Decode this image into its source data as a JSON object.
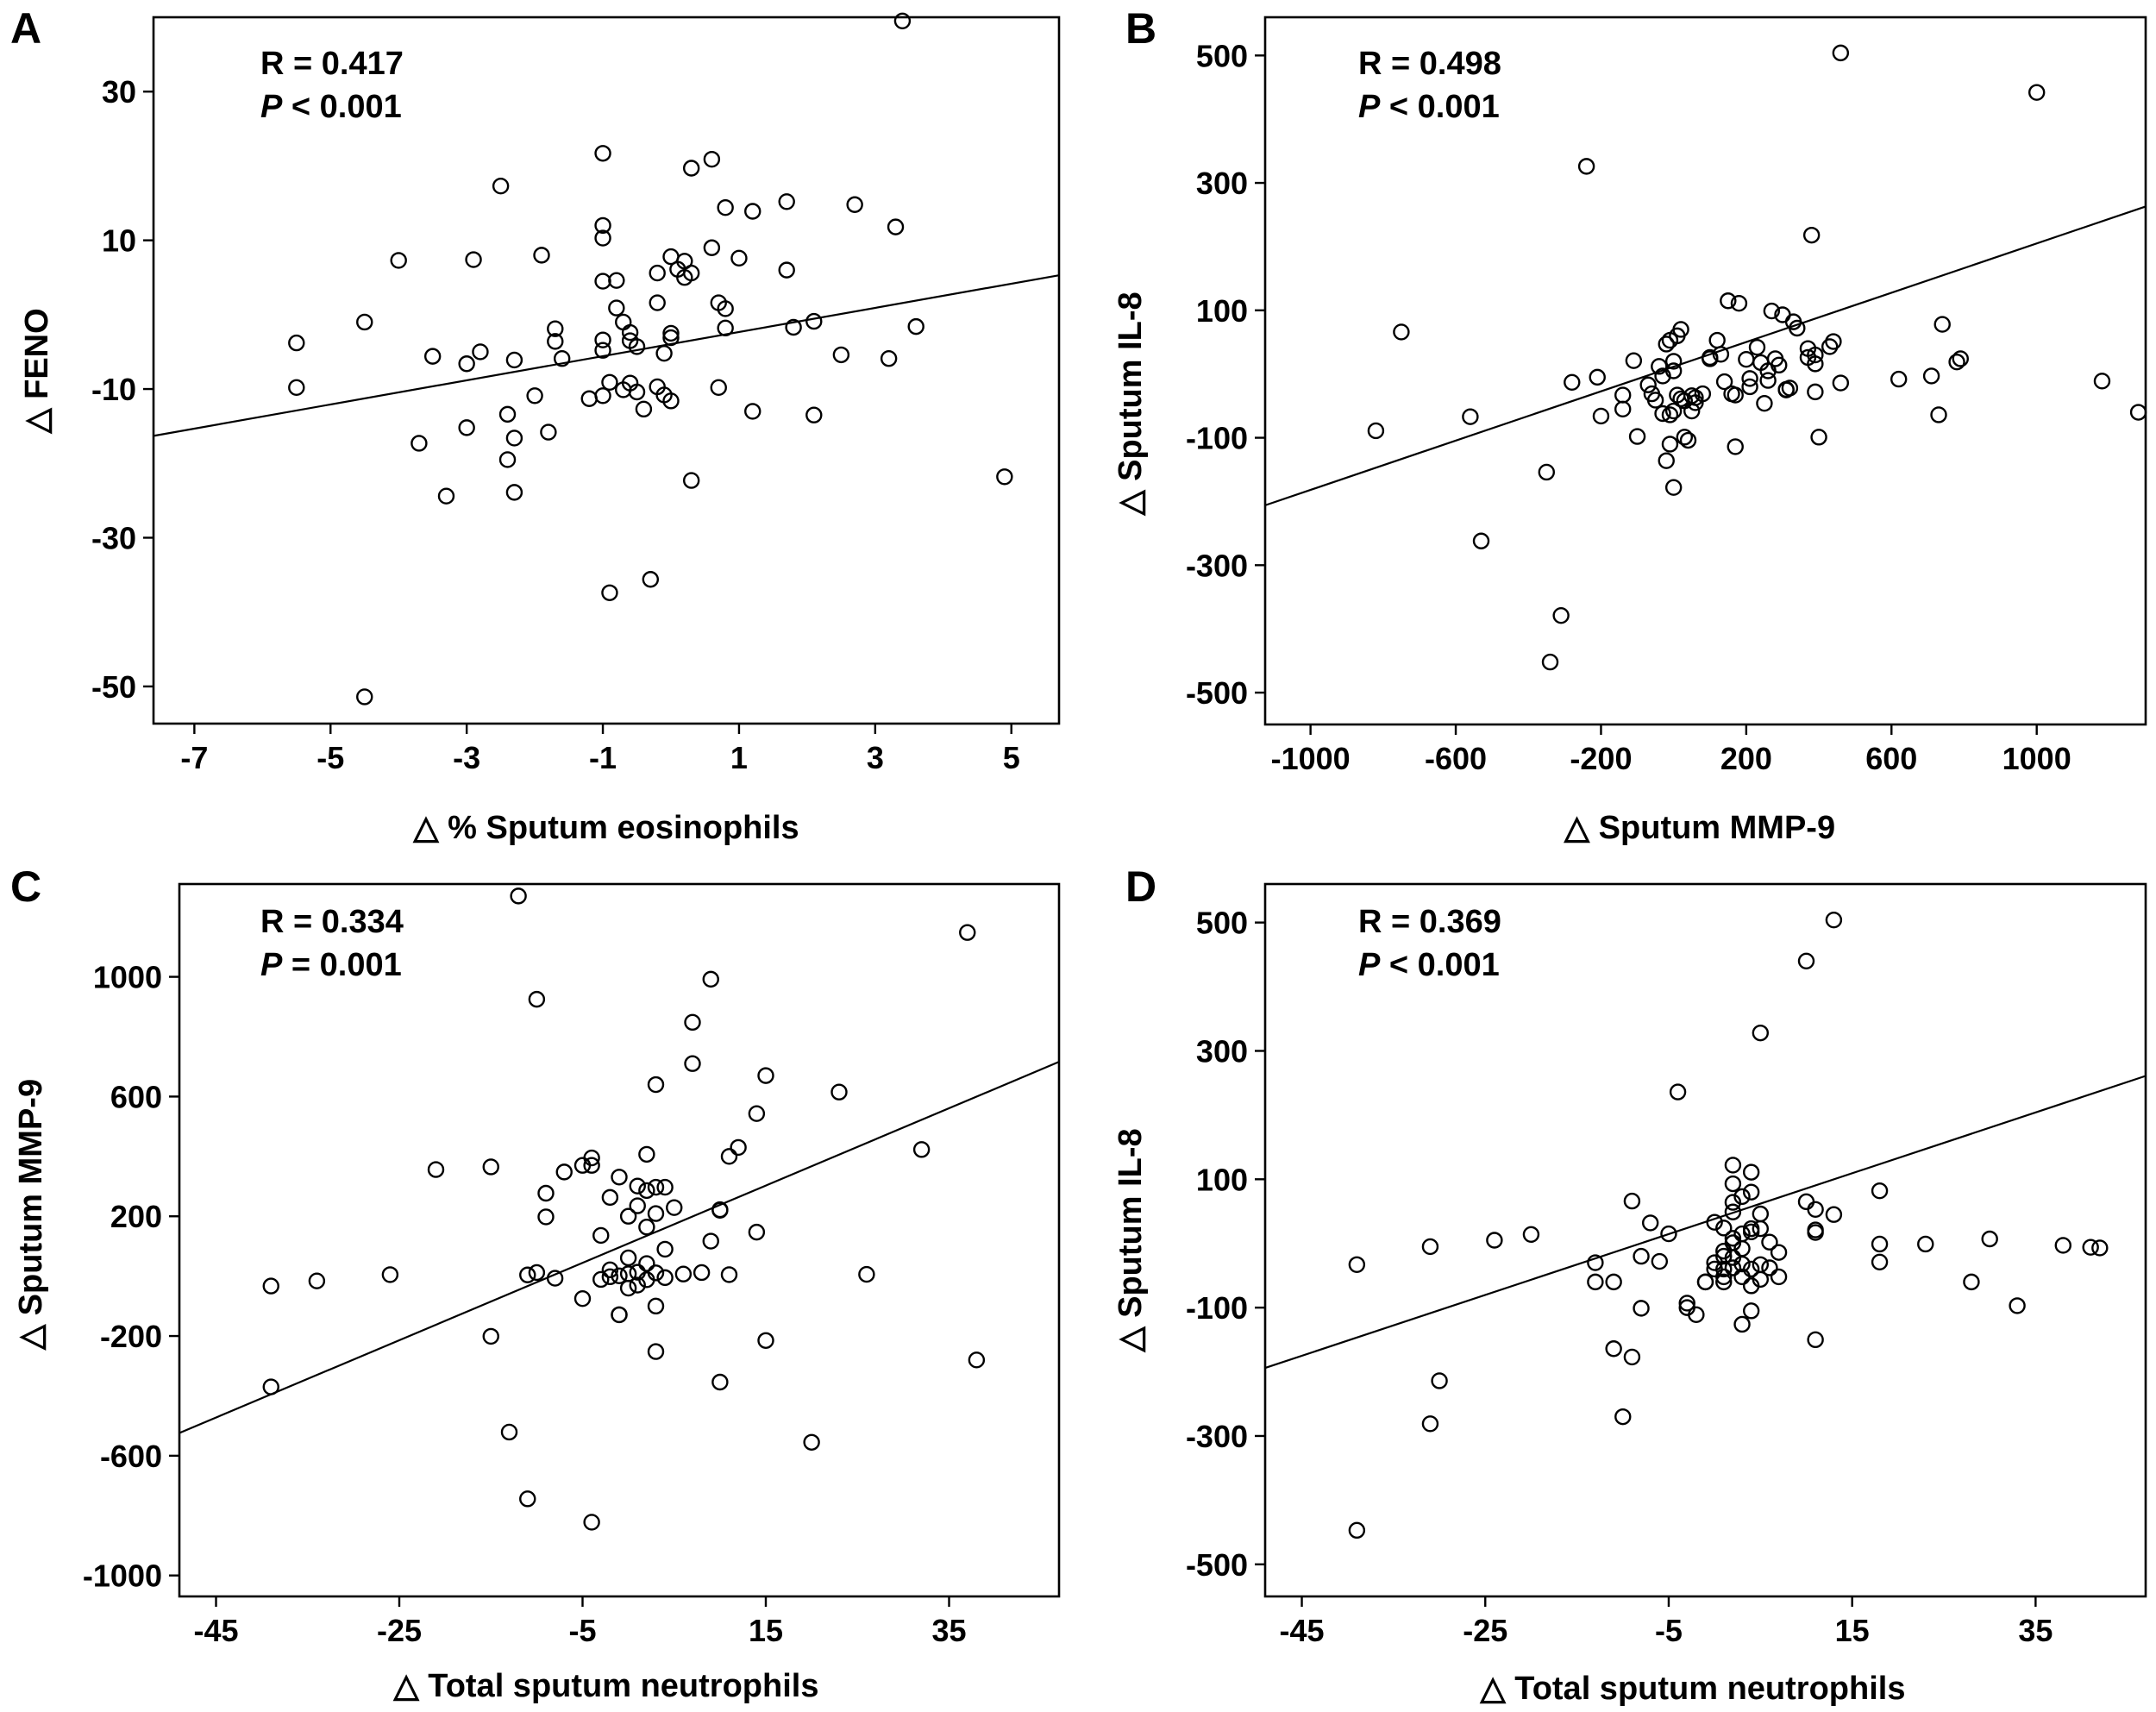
{
  "chart_data": [
    {
      "type": "scatter",
      "panel_label": "A",
      "stats": {
        "r": "R = 0.417",
        "p_label": "P",
        "p_text": " < 0.001"
      },
      "xlabel": "△ % Sputum eosinophils",
      "ylabel": "△ FENO",
      "xlim": [
        -7.6,
        5.7
      ],
      "ylim": [
        -55,
        40
      ],
      "xticks": [
        -7,
        -5,
        -3,
        -1,
        1,
        3,
        5
      ],
      "yticks": [
        -50,
        -30,
        -10,
        10,
        30
      ],
      "grid": false,
      "fit_line": {
        "x1": -7.6,
        "y1": -16.3,
        "x2": 5.7,
        "y2": 5.3
      },
      "points": [
        [
          -5.5,
          -3.8
        ],
        [
          -5.5,
          -9.8
        ],
        [
          -4.5,
          -1
        ],
        [
          -4.5,
          -51.4
        ],
        [
          -4.0,
          7.3
        ],
        [
          -3.7,
          -17.3
        ],
        [
          -3.5,
          -5.6
        ],
        [
          -3.3,
          -24.4
        ],
        [
          -3.0,
          -15.2
        ],
        [
          -3.0,
          -6.6
        ],
        [
          -2.9,
          7.4
        ],
        [
          -2.8,
          -5.0
        ],
        [
          -2.5,
          17.3
        ],
        [
          -2.4,
          -13.4
        ],
        [
          -2.4,
          -19.5
        ],
        [
          -2.3,
          -6.1
        ],
        [
          -2.3,
          -16.6
        ],
        [
          -2.3,
          -23.9
        ],
        [
          -2.0,
          -10.9
        ],
        [
          -1.9,
          8.0
        ],
        [
          -1.8,
          -15.8
        ],
        [
          -1.7,
          -1.9
        ],
        [
          -1.7,
          -3.6
        ],
        [
          -1.6,
          -5.9
        ],
        [
          -1.2,
          -11.3
        ],
        [
          -1.0,
          -4.8
        ],
        [
          -1.0,
          -10.9
        ],
        [
          -1.0,
          21.7
        ],
        [
          -1.0,
          4.5
        ],
        [
          -1.0,
          10.3
        ],
        [
          -1.0,
          12.0
        ],
        [
          -1.0,
          -3.4
        ],
        [
          -0.9,
          -9.1
        ],
        [
          -0.9,
          -37.4
        ],
        [
          -0.8,
          0.9
        ],
        [
          -0.8,
          4.6
        ],
        [
          -0.7,
          -10.1
        ],
        [
          -0.7,
          -1.0
        ],
        [
          -0.6,
          -2.4
        ],
        [
          -0.6,
          -3.5
        ],
        [
          -0.6,
          -9.2
        ],
        [
          -0.5,
          -10.4
        ],
        [
          -0.5,
          -4.3
        ],
        [
          -0.4,
          -12.7
        ],
        [
          -0.3,
          -35.6
        ],
        [
          -0.2,
          1.6
        ],
        [
          -0.2,
          5.6
        ],
        [
          -0.2,
          -9.7
        ],
        [
          -0.1,
          -10.8
        ],
        [
          -0.1,
          -5.2
        ],
        [
          0.0,
          -11.6
        ],
        [
          0.0,
          -2.5
        ],
        [
          0.0,
          -3.1
        ],
        [
          0.0,
          7.8
        ],
        [
          0.1,
          6.1
        ],
        [
          0.2,
          7.2
        ],
        [
          0.2,
          5.0
        ],
        [
          0.3,
          19.7
        ],
        [
          0.3,
          5.6
        ],
        [
          0.3,
          -22.3
        ],
        [
          0.6,
          20.9
        ],
        [
          0.6,
          9.0
        ],
        [
          0.7,
          1.6
        ],
        [
          0.7,
          -9.8
        ],
        [
          0.8,
          14.4
        ],
        [
          0.8,
          -1.8
        ],
        [
          0.8,
          0.8
        ],
        [
          1.0,
          7.6
        ],
        [
          1.2,
          13.9
        ],
        [
          1.2,
          -13.0
        ],
        [
          1.7,
          6.0
        ],
        [
          1.7,
          15.2
        ],
        [
          1.8,
          -1.7
        ],
        [
          2.1,
          -0.9
        ],
        [
          2.1,
          -13.5
        ],
        [
          2.5,
          -5.4
        ],
        [
          2.7,
          14.8
        ],
        [
          3.2,
          -5.9
        ],
        [
          3.3,
          11.8
        ],
        [
          3.4,
          39.5
        ],
        [
          3.6,
          -1.6
        ],
        [
          4.9,
          -21.8
        ]
      ]
    },
    {
      "type": "scatter",
      "panel_label": "B",
      "stats": {
        "r": "R = 0.498",
        "p_label": "P",
        "p_text": " < 0.001"
      },
      "xlabel": "△ Sputum MMP-9",
      "ylabel": "△ Sputum IL-8",
      "xlim": [
        -1125,
        1300
      ],
      "ylim": [
        -550,
        560
      ],
      "xticks": [
        -1000,
        -600,
        -200,
        200,
        600,
        1000
      ],
      "yticks": [
        -500,
        -300,
        -100,
        100,
        300,
        500
      ],
      "grid": false,
      "fit_line": {
        "x1": -1125,
        "y1": -206,
        "x2": 1300,
        "y2": 263
      },
      "points": [
        [
          -820,
          -89
        ],
        [
          -750,
          66
        ],
        [
          -560,
          -67
        ],
        [
          -530,
          -262
        ],
        [
          -350,
          -154
        ],
        [
          -340,
          -452
        ],
        [
          -310,
          -379
        ],
        [
          -280,
          -13
        ],
        [
          -240,
          326
        ],
        [
          -210,
          -5
        ],
        [
          -200,
          -66
        ],
        [
          -140,
          -55
        ],
        [
          -140,
          -33
        ],
        [
          -110,
          21
        ],
        [
          -100,
          -98
        ],
        [
          -70,
          -17
        ],
        [
          -60,
          -31
        ],
        [
          -50,
          -41
        ],
        [
          -40,
          12
        ],
        [
          -30,
          -3
        ],
        [
          -30,
          -62
        ],
        [
          -20,
          -136
        ],
        [
          -20,
          47
        ],
        [
          -10,
          -110
        ],
        [
          -10,
          -64
        ],
        [
          -10,
          53
        ],
        [
          0,
          20
        ],
        [
          0,
          5
        ],
        [
          0,
          -58
        ],
        [
          0,
          -178
        ],
        [
          10,
          60
        ],
        [
          10,
          -33
        ],
        [
          20,
          70
        ],
        [
          20,
          -39
        ],
        [
          30,
          -99
        ],
        [
          30,
          -42
        ],
        [
          40,
          -104
        ],
        [
          50,
          -58
        ],
        [
          50,
          -34
        ],
        [
          60,
          -45
        ],
        [
          60,
          -37
        ],
        [
          80,
          -31
        ],
        [
          100,
          26
        ],
        [
          100,
          24
        ],
        [
          120,
          53
        ],
        [
          130,
          31
        ],
        [
          140,
          -12
        ],
        [
          150,
          115
        ],
        [
          160,
          -31
        ],
        [
          170,
          -114
        ],
        [
          170,
          -33
        ],
        [
          180,
          111
        ],
        [
          200,
          23
        ],
        [
          210,
          -20
        ],
        [
          210,
          -7
        ],
        [
          230,
          42
        ],
        [
          240,
          18
        ],
        [
          250,
          -46
        ],
        [
          260,
          5
        ],
        [
          260,
          -10
        ],
        [
          270,
          99
        ],
        [
          280,
          24
        ],
        [
          290,
          14
        ],
        [
          300,
          93
        ],
        [
          310,
          -25
        ],
        [
          310,
          -24
        ],
        [
          320,
          -22
        ],
        [
          330,
          82
        ],
        [
          340,
          72
        ],
        [
          370,
          40
        ],
        [
          370,
          26
        ],
        [
          380,
          218
        ],
        [
          390,
          30
        ],
        [
          390,
          16
        ],
        [
          390,
          -28
        ],
        [
          400,
          -99
        ],
        [
          430,
          43
        ],
        [
          440,
          51
        ],
        [
          460,
          504
        ],
        [
          460,
          -14
        ],
        [
          620,
          -8
        ],
        [
          710,
          -3
        ],
        [
          730,
          -64
        ],
        [
          740,
          78
        ],
        [
          780,
          19
        ],
        [
          790,
          24
        ],
        [
          1000,
          442
        ],
        [
          1180,
          -11
        ],
        [
          1280,
          -60
        ]
      ]
    },
    {
      "type": "scatter",
      "panel_label": "C",
      "stats": {
        "r": "R = 0.334",
        "p_label": "P",
        "p_text": " = 0.001"
      },
      "xlabel": "△ Total sputum neutrophils",
      "ylabel": "△ Sputum MMP-9",
      "xlim": [
        -49,
        47
      ],
      "ylim": [
        -1070,
        1310
      ],
      "xticks": [
        -45,
        -25,
        -5,
        15,
        35
      ],
      "yticks": [
        -1000,
        -600,
        -200,
        200,
        600,
        1000
      ],
      "grid": false,
      "fit_line": {
        "x1": -49,
        "y1": -524,
        "x2": 47,
        "y2": 716
      },
      "points": [
        [
          -39,
          -33
        ],
        [
          -39,
          -370
        ],
        [
          -34,
          -16
        ],
        [
          -26,
          5
        ],
        [
          -21,
          356
        ],
        [
          -15,
          365
        ],
        [
          -15,
          -201
        ],
        [
          -13,
          -521
        ],
        [
          -12,
          1270
        ],
        [
          -11,
          4
        ],
        [
          -11,
          -744
        ],
        [
          -10,
          925
        ],
        [
          -10,
          12
        ],
        [
          -9,
          277
        ],
        [
          -9,
          198
        ],
        [
          -8,
          -7
        ],
        [
          -7,
          348
        ],
        [
          -5,
          370
        ],
        [
          -5,
          -75
        ],
        [
          -4,
          370
        ],
        [
          -4,
          395
        ],
        [
          -4,
          -822
        ],
        [
          -3,
          136
        ],
        [
          -3,
          -11
        ],
        [
          -2,
          -2
        ],
        [
          -2,
          263
        ],
        [
          -2,
          21
        ],
        [
          -1,
          331
        ],
        [
          -1,
          -129
        ],
        [
          -1,
          1
        ],
        [
          -1,
          -129
        ],
        [
          0,
          61
        ],
        [
          0,
          200
        ],
        [
          0,
          8
        ],
        [
          0,
          -40
        ],
        [
          1,
          301
        ],
        [
          1,
          235
        ],
        [
          1,
          13
        ],
        [
          1,
          -30
        ],
        [
          2,
          -12
        ],
        [
          2,
          286
        ],
        [
          2,
          407
        ],
        [
          2,
          164
        ],
        [
          2,
          42
        ],
        [
          3,
          209
        ],
        [
          3,
          297
        ],
        [
          3,
          640
        ],
        [
          3,
          11
        ],
        [
          3,
          -100
        ],
        [
          3,
          -252
        ],
        [
          4,
          90
        ],
        [
          4,
          297
        ],
        [
          4,
          -5
        ],
        [
          5,
          229
        ],
        [
          6,
          7
        ],
        [
          7,
          848
        ],
        [
          7,
          710
        ],
        [
          8,
          12
        ],
        [
          9,
          992
        ],
        [
          9,
          117
        ],
        [
          10,
          220
        ],
        [
          10,
          -354
        ],
        [
          10,
          222
        ],
        [
          11,
          5
        ],
        [
          11,
          400
        ],
        [
          12,
          430
        ],
        [
          14,
          543
        ],
        [
          14,
          147
        ],
        [
          15,
          670
        ],
        [
          15,
          -215
        ],
        [
          20,
          -555
        ],
        [
          23,
          615
        ],
        [
          26,
          6
        ],
        [
          32,
          423
        ],
        [
          37,
          1148
        ],
        [
          38,
          -280
        ]
      ]
    },
    {
      "type": "scatter",
      "panel_label": "D",
      "stats": {
        "r": "R = 0.369",
        "p_label": "P",
        "p_text": " < 0.001"
      },
      "xlabel": "△ Total sputum neutrophils",
      "ylabel": "△ Sputum IL-8",
      "xlim": [
        -49,
        47
      ],
      "ylim": [
        -550,
        560
      ],
      "xticks": [
        -45,
        -25,
        -5,
        15,
        35
      ],
      "yticks": [
        -500,
        -300,
        -100,
        100,
        300,
        500
      ],
      "grid": false,
      "fit_line": {
        "x1": -49,
        "y1": -194,
        "x2": 47,
        "y2": 261
      },
      "points": [
        [
          -39,
          -33
        ],
        [
          -39,
          -447
        ],
        [
          -31,
          -5
        ],
        [
          -31,
          -281
        ],
        [
          -30,
          -214
        ],
        [
          -24,
          5
        ],
        [
          -20,
          14
        ],
        [
          -13,
          -30
        ],
        [
          -13,
          -60
        ],
        [
          -11,
          -60
        ],
        [
          -11,
          -164
        ],
        [
          -10,
          -270
        ],
        [
          -9,
          -177
        ],
        [
          -9,
          66
        ],
        [
          -8,
          -20
        ],
        [
          -8,
          -101
        ],
        [
          -7,
          32
        ],
        [
          -6,
          -28
        ],
        [
          -5,
          15
        ],
        [
          -4,
          236
        ],
        [
          -3,
          -93
        ],
        [
          -3,
          -100
        ],
        [
          -2,
          -111
        ],
        [
          -1,
          -60
        ],
        [
          -1,
          -60
        ],
        [
          0,
          -40
        ],
        [
          0,
          -30
        ],
        [
          0,
          33
        ],
        [
          1,
          24
        ],
        [
          1,
          -60
        ],
        [
          1,
          -20
        ],
        [
          1,
          -40
        ],
        [
          1,
          -12
        ],
        [
          1,
          -52
        ],
        [
          2,
          122
        ],
        [
          2,
          1
        ],
        [
          2,
          -38
        ],
        [
          2,
          8
        ],
        [
          2,
          49
        ],
        [
          2,
          93
        ],
        [
          2,
          64
        ],
        [
          2,
          -22
        ],
        [
          3,
          -8
        ],
        [
          3,
          -32
        ],
        [
          3,
          -52
        ],
        [
          3,
          15
        ],
        [
          3,
          73
        ],
        [
          3,
          -126
        ],
        [
          4,
          80
        ],
        [
          4,
          -105
        ],
        [
          4,
          23
        ],
        [
          4,
          -40
        ],
        [
          4,
          18
        ],
        [
          4,
          -66
        ],
        [
          4,
          111
        ],
        [
          5,
          328
        ],
        [
          5,
          46
        ],
        [
          5,
          -33
        ],
        [
          5,
          -56
        ],
        [
          5,
          23
        ],
        [
          6,
          2
        ],
        [
          6,
          -38
        ],
        [
          7,
          -14
        ],
        [
          7,
          -52
        ],
        [
          10,
          65
        ],
        [
          10,
          440
        ],
        [
          11,
          -150
        ],
        [
          11,
          21
        ],
        [
          11,
          17
        ],
        [
          11,
          53
        ],
        [
          13,
          504
        ],
        [
          13,
          45
        ],
        [
          18,
          -1
        ],
        [
          18,
          -29
        ],
        [
          18,
          82
        ],
        [
          23,
          -1
        ],
        [
          28,
          -60
        ],
        [
          30,
          7
        ],
        [
          33,
          -97
        ],
        [
          38,
          -3
        ],
        [
          41,
          -6
        ],
        [
          42,
          -7
        ]
      ]
    }
  ]
}
